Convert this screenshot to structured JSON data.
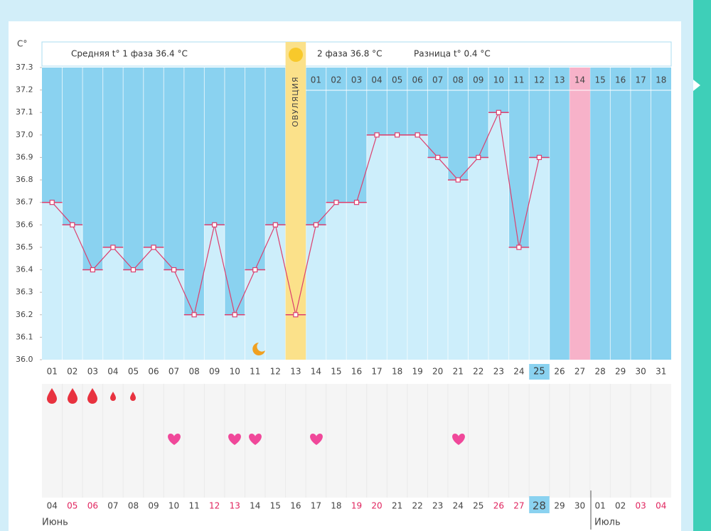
{
  "chart_data": {
    "type": "line",
    "unit_label": "C°",
    "phase1_text": "Средняя t° 1 фаза 36.4 °C",
    "phase2_text": "2 фаза 36.8 °C",
    "difference_text": "Разница t° 0.4 °C",
    "ovulation_label": "ОВУЛЯЦИЯ",
    "categories": [
      "01",
      "02",
      "03",
      "04",
      "05",
      "06",
      "07",
      "08",
      "09",
      "10",
      "11",
      "12",
      "13",
      "14",
      "15",
      "16",
      "17",
      "18",
      "19",
      "20",
      "21",
      "22",
      "23",
      "24",
      "25",
      "26",
      "27",
      "28",
      "29",
      "30",
      "31"
    ],
    "values": [
      36.7,
      36.6,
      36.4,
      36.5,
      36.4,
      36.5,
      36.4,
      36.2,
      36.6,
      36.2,
      36.4,
      36.6,
      36.2,
      36.6,
      36.7,
      36.7,
      37.0,
      37.0,
      37.0,
      36.9,
      36.8,
      36.9,
      37.1,
      36.5,
      36.9,
      null,
      null,
      null,
      null,
      null,
      null
    ],
    "color": "#dc3f6e",
    "cycle_days": [
      "01",
      "02",
      "03",
      "04",
      "05",
      "06",
      "07",
      "08",
      "09",
      "10",
      "11",
      "12",
      "13",
      "14",
      "15",
      "16",
      "17",
      "18"
    ],
    "dates": [
      "04",
      "05",
      "06",
      "07",
      "08",
      "09",
      "10",
      "11",
      "12",
      "13",
      "14",
      "15",
      "16",
      "17",
      "18",
      "19",
      "20",
      "21",
      "22",
      "23",
      "24",
      "25",
      "26",
      "27",
      "28",
      "29",
      "30",
      "01",
      "02",
      "03",
      "04"
    ],
    "date_colors": [
      "#444",
      "#e0245e",
      "#e0245e",
      "#444",
      "#444",
      "#444",
      "#444",
      "#444",
      "#e0245e",
      "#e0245e",
      "#444",
      "#444",
      "#444",
      "#444",
      "#444",
      "#e0245e",
      "#e0245e",
      "#444",
      "#444",
      "#444",
      "#444",
      "#444",
      "#e0245e",
      "#e0245e",
      "#444",
      "#444",
      "#444",
      "#444",
      "#444",
      "#e0245e",
      "#e0245e"
    ],
    "months": [
      "Июнь",
      "Июль"
    ],
    "ylim": [
      36.0,
      37.3
    ],
    "yticks": [
      {
        "value": 36.0,
        "label": "36.0"
      },
      36.1,
      36.2,
      36.3,
      36.4,
      36.5,
      36.6,
      36.7,
      36.8,
      36.9,
      {
        "value": 37.0,
        "label": "37.0"
      },
      37.1,
      37.2,
      37.3
    ]
  }
}
